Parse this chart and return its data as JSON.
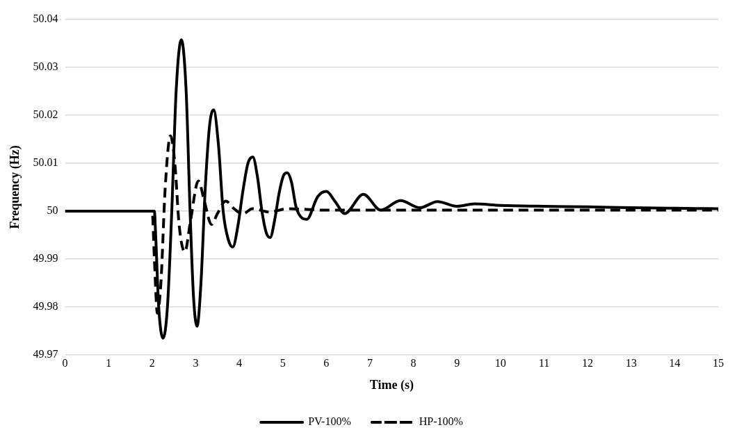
{
  "chart_data": {
    "type": "line",
    "xlabel": "Time (s)",
    "ylabel": "Frequency (Hz)",
    "xlim": [
      0,
      15
    ],
    "xticks": [
      0,
      1,
      2,
      3,
      4,
      5,
      6,
      7,
      8,
      9,
      10,
      11,
      12,
      13,
      14,
      15
    ],
    "ylim": [
      49.97,
      50.04
    ],
    "yticks": [
      49.97,
      49.98,
      49.99,
      50,
      50.01,
      50.02,
      50.03,
      50.04
    ],
    "grid": "y",
    "legend": "bottom",
    "marker": "none",
    "series": [
      {
        "name": "PV-100%",
        "color": "#000000",
        "line_style": "solid",
        "x": [
          0,
          2.05,
          2.08,
          2.15,
          2.25,
          2.35,
          2.45,
          2.55,
          2.67,
          2.78,
          2.87,
          2.95,
          3.03,
          3.12,
          3.22,
          3.32,
          3.41,
          3.52,
          3.63,
          3.75,
          3.85,
          3.97,
          4.08,
          4.2,
          4.31,
          4.42,
          4.52,
          4.62,
          4.71,
          4.81,
          4.92,
          5.02,
          5.1,
          5.2,
          5.3,
          5.45,
          5.55,
          5.8,
          6.0,
          6.2,
          6.42,
          6.85,
          7.25,
          7.7,
          8.15,
          8.55,
          9.0,
          9.4,
          10,
          11,
          12,
          13,
          14,
          15
        ],
        "values": [
          50,
          50,
          49.995,
          49.98,
          49.9735,
          49.98,
          50,
          50.025,
          50.0357,
          50.025,
          50,
          49.982,
          49.976,
          49.985,
          50.005,
          50.018,
          50.0211,
          50.014,
          50,
          49.994,
          49.9925,
          49.997,
          50.004,
          50.01,
          50.0113,
          50.007,
          50,
          49.9955,
          49.9945,
          49.998,
          50.004,
          50.0075,
          50.008,
          50.006,
          50.001,
          49.9985,
          49.9983,
          50.003,
          50.0041,
          50.002,
          49.9995,
          50.0035,
          50.0002,
          50.0022,
          50.0007,
          50.002,
          50.001,
          50.0015,
          50.0012,
          50.001,
          50.0009,
          50.0007,
          50.0006,
          50.0005
        ]
      },
      {
        "name": "HP-100%",
        "color": "#000000",
        "line_style": "dashed",
        "x": [
          0,
          2.0,
          2.05,
          2.12,
          2.2,
          2.3,
          2.42,
          2.52,
          2.62,
          2.75,
          2.88,
          3.06,
          3.2,
          3.36,
          3.5,
          3.69,
          3.88,
          4.08,
          4.3,
          4.7,
          5.1,
          6,
          15
        ],
        "values": [
          50,
          50,
          49.99,
          49.9787,
          49.985,
          50.005,
          50.0157,
          50.01,
          49.997,
          49.9915,
          49.998,
          50.0063,
          50.002,
          49.9972,
          49.9995,
          50.0021,
          50.0005,
          49.9994,
          50.0005,
          49.9998,
          50.0005,
          50.0002,
          50.0002
        ]
      }
    ]
  }
}
